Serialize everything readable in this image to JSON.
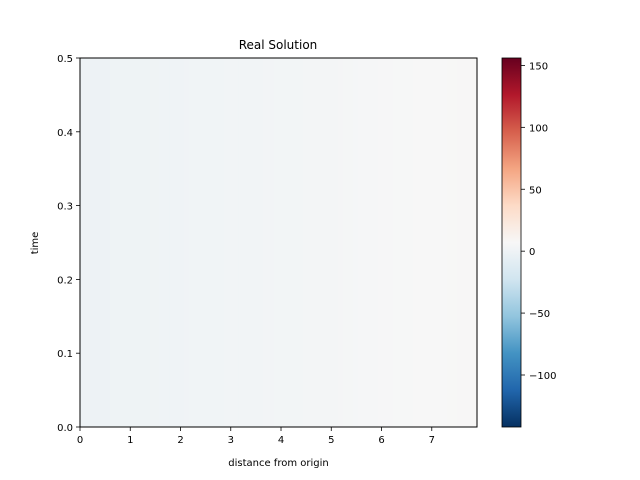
{
  "chart_data": {
    "type": "heatmap",
    "title": "Real Solution",
    "xlabel": "distance from origin",
    "ylabel": "time",
    "xlim": [
      0,
      7.9
    ],
    "ylim": [
      0,
      0.5
    ],
    "x_ticks": [
      "0",
      "1",
      "2",
      "3",
      "4",
      "5",
      "6",
      "7"
    ],
    "y_ticks": [
      "0.0",
      "0.1",
      "0.2",
      "0.3",
      "0.4",
      "0.5"
    ],
    "colormap": "RdBu_r",
    "clim": [
      -142,
      156
    ],
    "colorbar_ticks": [
      "−100",
      "−50",
      "0",
      "50",
      "100",
      "150"
    ],
    "colorbar_tick_values": [
      -100,
      -50,
      0,
      50,
      100,
      150
    ],
    "grid": false,
    "field_values_by_distance": {
      "x": [
        0,
        1,
        2,
        3,
        4,
        5,
        6,
        7,
        7.9
      ],
      "value": [
        -1,
        0,
        1,
        2,
        3,
        4,
        6,
        7,
        8
      ]
    }
  }
}
